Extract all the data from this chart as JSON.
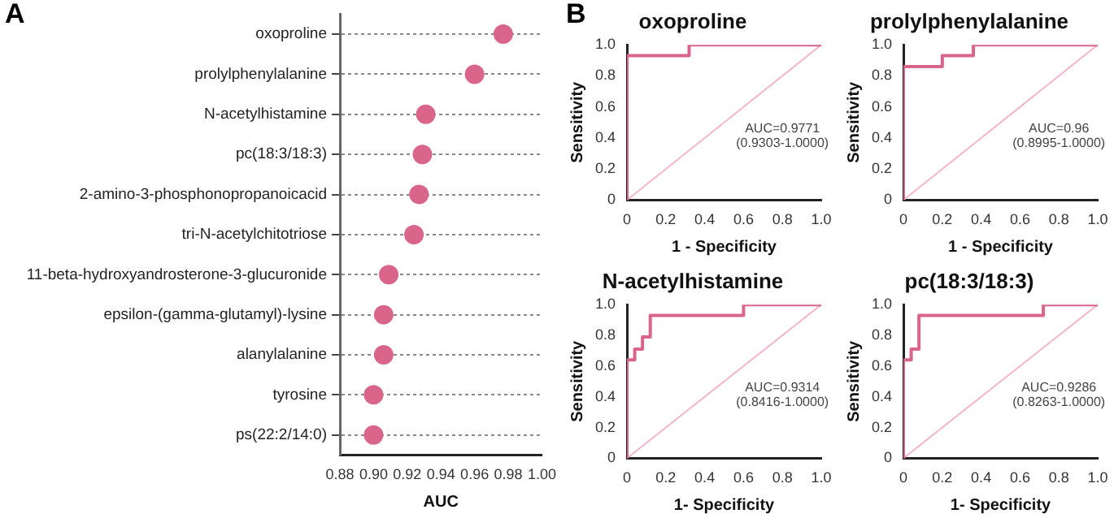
{
  "chart_data": [
    {
      "type": "scatter",
      "orientation": "horizontal",
      "annotations": [
        "A"
      ],
      "xlabel": "AUC",
      "categories": [
        "oxoproline",
        "prolylphenylalanine",
        "N-acetylhistamine",
        "pc(18:3/18:3)",
        "2-amino-3-phosphonopropanoicacid",
        "tri-N-acetylchitotriose",
        "11-beta-hydroxyandrosterone-3-glucuronide",
        "epsilon-(gamma-glutamyl)-lysine",
        "alanylalanine",
        "tyrosine",
        "ps(22:2/14:0)"
      ],
      "values": [
        0.977,
        0.96,
        0.931,
        0.929,
        0.927,
        0.924,
        0.909,
        0.906,
        0.906,
        0.9,
        0.9
      ],
      "color": "#d9668a",
      "marker": "circle",
      "grid": "y",
      "xlim": [
        0.88,
        1.0
      ],
      "xticks": [
        {
          "value": 0.88,
          "label": "0.88"
        },
        {
          "value": 0.9,
          "label": "0.90"
        },
        {
          "value": 0.92,
          "label": "0.92"
        },
        {
          "value": 0.94,
          "label": "0.94"
        },
        {
          "value": 0.96,
          "label": "0.96"
        },
        {
          "value": 0.98,
          "label": "0.98"
        },
        {
          "value": 1.0,
          "label": "1.00"
        }
      ]
    },
    {
      "type": "line",
      "title": "oxoproline",
      "xlabel": "1 - Specificity",
      "ylabel": "Sensitivity",
      "annotations": [
        "B",
        "AUC=0.9771",
        "(0.9303-1.0000)"
      ],
      "marker": "none",
      "series": [
        {
          "color": "#d9668a",
          "x": [
            0,
            0,
            0.32,
            0.32,
            1
          ],
          "values": [
            0,
            0.93,
            0.93,
            1,
            1
          ]
        },
        {
          "color": "#f2b6c6",
          "x": [
            0,
            1
          ],
          "values": [
            0,
            1
          ]
        }
      ],
      "xlim": [
        0,
        1
      ],
      "ylim": [
        0,
        1
      ],
      "xticks": [
        {
          "value": 0,
          "label": "0"
        },
        {
          "value": 0.2,
          "label": "0.2"
        },
        {
          "value": 0.4,
          "label": "0.4"
        },
        {
          "value": 0.6,
          "label": "0.6"
        },
        {
          "value": 0.8,
          "label": "0.8"
        },
        {
          "value": 1,
          "label": "1.0"
        }
      ],
      "yticks": [
        {
          "value": 0,
          "label": "0"
        },
        {
          "value": 0.2,
          "label": "0.2"
        },
        {
          "value": 0.4,
          "label": "0.4"
        },
        {
          "value": 0.6,
          "label": "0.6"
        },
        {
          "value": 0.8,
          "label": "0.8"
        },
        {
          "value": 1,
          "label": "1.0"
        }
      ]
    },
    {
      "type": "line",
      "title": "prolylphenylalanine",
      "xlabel": "1 - Specificity",
      "ylabel": "Sensitivity",
      "annotations": [
        "AUC=0.96",
        "(0.8995-1.0000)"
      ],
      "marker": "none",
      "series": [
        {
          "color": "#d9668a",
          "x": [
            0,
            0,
            0.2,
            0.2,
            0.36,
            0.36,
            1
          ],
          "values": [
            0,
            0.86,
            0.86,
            0.93,
            0.93,
            1,
            1
          ]
        },
        {
          "color": "#f2b6c6",
          "x": [
            0,
            1
          ],
          "values": [
            0,
            1
          ]
        }
      ],
      "xlim": [
        0,
        1
      ],
      "ylim": [
        0,
        1
      ],
      "xticks": [
        {
          "value": 0,
          "label": "0"
        },
        {
          "value": 0.2,
          "label": "0.2"
        },
        {
          "value": 0.4,
          "label": "0.4"
        },
        {
          "value": 0.6,
          "label": "0.6"
        },
        {
          "value": 0.8,
          "label": "0.8"
        },
        {
          "value": 1,
          "label": "1.0"
        }
      ],
      "yticks": [
        {
          "value": 0,
          "label": "0"
        },
        {
          "value": 0.2,
          "label": "0.2"
        },
        {
          "value": 0.4,
          "label": "0.4"
        },
        {
          "value": 0.6,
          "label": "0.6"
        },
        {
          "value": 0.8,
          "label": "0.8"
        },
        {
          "value": 1,
          "label": "1.0"
        }
      ]
    },
    {
      "type": "line",
      "title": "N-acetylhistamine",
      "xlabel": "1- Specificity",
      "ylabel": "Sensitivity",
      "annotations": [
        "AUC=0.9314",
        "(0.8416-1.0000)"
      ],
      "marker": "none",
      "series": [
        {
          "color": "#d9668a",
          "x": [
            0,
            0,
            0.04,
            0.04,
            0.08,
            0.08,
            0.12,
            0.12,
            0.6,
            0.6,
            1
          ],
          "values": [
            0,
            0.64,
            0.64,
            0.71,
            0.71,
            0.79,
            0.79,
            0.93,
            0.93,
            1,
            1
          ]
        },
        {
          "color": "#f2b6c6",
          "x": [
            0,
            1
          ],
          "values": [
            0,
            1
          ]
        }
      ],
      "xlim": [
        0,
        1
      ],
      "ylim": [
        0,
        1
      ],
      "xticks": [
        {
          "value": 0,
          "label": "0"
        },
        {
          "value": 0.2,
          "label": "0.2"
        },
        {
          "value": 0.4,
          "label": "0.4"
        },
        {
          "value": 0.6,
          "label": "0.6"
        },
        {
          "value": 0.8,
          "label": "0.8"
        },
        {
          "value": 1,
          "label": "1.0"
        }
      ],
      "yticks": [
        {
          "value": 0,
          "label": "0"
        },
        {
          "value": 0.2,
          "label": "0.2"
        },
        {
          "value": 0.4,
          "label": "0.4"
        },
        {
          "value": 0.6,
          "label": "0.6"
        },
        {
          "value": 0.8,
          "label": "0.8"
        },
        {
          "value": 1,
          "label": "1.0"
        }
      ]
    },
    {
      "type": "line",
      "title": "pc(18:3/18:3)",
      "xlabel": "1- Specificity",
      "ylabel": "Sensitivity",
      "annotations": [
        "AUC=0.9286",
        "(0.8263-1.0000)"
      ],
      "marker": "none",
      "series": [
        {
          "color": "#d9668a",
          "x": [
            0,
            0,
            0.04,
            0.04,
            0.08,
            0.08,
            0.72,
            0.72,
            1
          ],
          "values": [
            0,
            0.64,
            0.64,
            0.71,
            0.71,
            0.93,
            0.93,
            1,
            1
          ]
        },
        {
          "color": "#f2b6c6",
          "x": [
            0,
            1
          ],
          "values": [
            0,
            1
          ]
        }
      ],
      "xlim": [
        0,
        1
      ],
      "ylim": [
        0,
        1
      ],
      "xticks": [
        {
          "value": 0,
          "label": "0"
        },
        {
          "value": 0.2,
          "label": "0.2"
        },
        {
          "value": 0.4,
          "label": "0.4"
        },
        {
          "value": 0.6,
          "label": "0.6"
        },
        {
          "value": 0.8,
          "label": "0.8"
        },
        {
          "value": 1,
          "label": "1.0"
        }
      ],
      "yticks": [
        {
          "value": 0,
          "label": "0"
        },
        {
          "value": 0.2,
          "label": "0.2"
        },
        {
          "value": 0.4,
          "label": "0.4"
        },
        {
          "value": 0.6,
          "label": "0.6"
        },
        {
          "value": 0.8,
          "label": "0.8"
        },
        {
          "value": 1,
          "label": "1.0"
        }
      ]
    }
  ]
}
